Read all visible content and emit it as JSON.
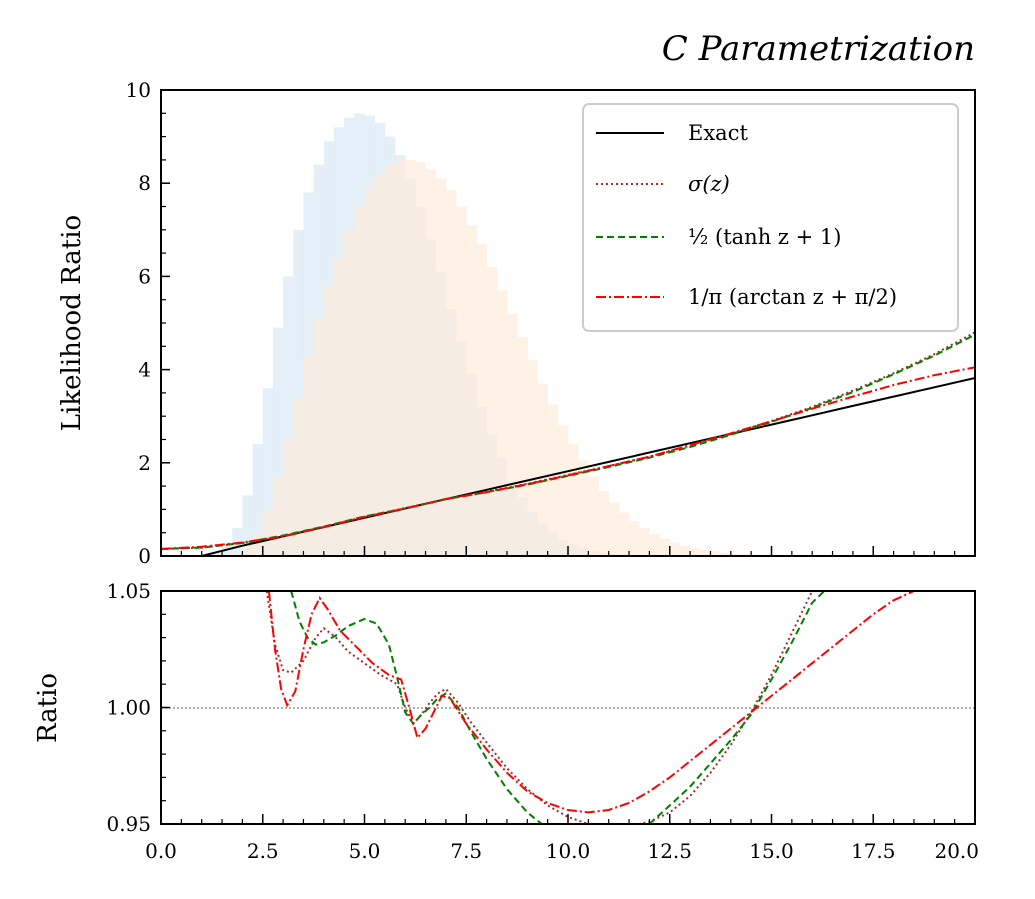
{
  "title": "C Parametrization",
  "chart_data": [
    {
      "type": "line",
      "panel": "main",
      "ylabel": "Likelihood Ratio",
      "xlim": [
        0,
        20
      ],
      "ylim": [
        0,
        10
      ],
      "yticks": [
        "0",
        "2",
        "4",
        "6",
        "8",
        "10"
      ],
      "legend_position": "top-right",
      "histograms": [
        {
          "color": "#dce9f5",
          "bin_edges_x": [
            1.0,
            1.25,
            1.5,
            1.75,
            2.0,
            2.25,
            2.5,
            2.75,
            3.0,
            3.25,
            3.5,
            3.75,
            4.0,
            4.25,
            4.5,
            4.75,
            5.0,
            5.25,
            5.5,
            5.75,
            6.0,
            6.25,
            6.5,
            6.75,
            7.0,
            7.25,
            7.5,
            7.75,
            8.0,
            8.25,
            8.5,
            8.75,
            9.0,
            9.25,
            9.5,
            9.75,
            10.0,
            10.25,
            10.5,
            10.75,
            11.0,
            11.25,
            11.5,
            11.75,
            12.0
          ],
          "heights": [
            0.0,
            0.05,
            0.2,
            0.6,
            1.3,
            2.4,
            3.6,
            4.9,
            6.0,
            7.0,
            7.8,
            8.4,
            8.9,
            9.2,
            9.4,
            9.5,
            9.45,
            9.3,
            9.0,
            8.6,
            8.1,
            7.5,
            6.8,
            6.1,
            5.3,
            4.6,
            3.9,
            3.2,
            2.6,
            2.1,
            1.6,
            1.25,
            0.95,
            0.7,
            0.5,
            0.35,
            0.25,
            0.17,
            0.11,
            0.07,
            0.04,
            0.02,
            0.01,
            0.0
          ]
        },
        {
          "color": "#fdebd8",
          "bin_edges_x": [
            1.5,
            1.75,
            2.0,
            2.25,
            2.5,
            2.75,
            3.0,
            3.25,
            3.5,
            3.75,
            4.0,
            4.25,
            4.5,
            4.75,
            5.0,
            5.25,
            5.5,
            5.75,
            6.0,
            6.25,
            6.5,
            6.75,
            7.0,
            7.25,
            7.5,
            7.75,
            8.0,
            8.25,
            8.5,
            8.75,
            9.0,
            9.25,
            9.5,
            9.75,
            10.0,
            10.25,
            10.5,
            10.75,
            11.0,
            11.25,
            11.5,
            11.75,
            12.0,
            12.25,
            12.5,
            12.75,
            13.0,
            13.25,
            13.5,
            13.75,
            14.0,
            14.25,
            14.5,
            14.75,
            15.0,
            15.25,
            15.5,
            15.75,
            16.0,
            16.25,
            16.5,
            16.75,
            17.0
          ],
          "heights": [
            0.0,
            0.05,
            0.2,
            0.5,
            1.0,
            1.7,
            2.5,
            3.4,
            4.3,
            5.1,
            5.8,
            6.4,
            7.0,
            7.5,
            7.9,
            8.2,
            8.4,
            8.5,
            8.5,
            8.45,
            8.3,
            8.1,
            7.85,
            7.5,
            7.1,
            6.7,
            6.2,
            5.7,
            5.2,
            4.7,
            4.2,
            3.7,
            3.25,
            2.8,
            2.4,
            2.05,
            1.7,
            1.4,
            1.15,
            0.93,
            0.75,
            0.6,
            0.47,
            0.37,
            0.29,
            0.22,
            0.17,
            0.13,
            0.1,
            0.07,
            0.05,
            0.04,
            0.03,
            0.02,
            0.015,
            0.01,
            0.007,
            0.005,
            0.003,
            0.002,
            0.001,
            0.0
          ]
        }
      ],
      "series": [
        {
          "name": "Exact",
          "color": "#000000",
          "style": "solid",
          "x": [
            1.0,
            2.0,
            3.0,
            4.0,
            5.0,
            6.0,
            7.0,
            8.0,
            9.0,
            10.0,
            11.0,
            12.0,
            13.0,
            14.0,
            15.0,
            16.0,
            17.0,
            18.0,
            19.0,
            20.0
          ],
          "y": [
            0.0,
            0.22,
            0.42,
            0.62,
            0.82,
            1.02,
            1.22,
            1.42,
            1.62,
            1.82,
            2.02,
            2.22,
            2.42,
            2.62,
            2.82,
            3.02,
            3.22,
            3.42,
            3.62,
            3.82
          ]
        },
        {
          "name": "σ(z)",
          "color": "#a52a2a",
          "style": "dotted",
          "x": [
            0.0,
            1.0,
            2.0,
            3.0,
            4.0,
            5.0,
            6.0,
            7.0,
            8.0,
            9.0,
            10.0,
            11.0,
            12.0,
            13.0,
            14.0,
            15.0,
            16.0,
            17.0,
            18.0,
            19.0,
            20.0
          ],
          "y": [
            0.15,
            0.18,
            0.28,
            0.43,
            0.63,
            0.84,
            1.03,
            1.22,
            1.38,
            1.55,
            1.74,
            1.93,
            2.13,
            2.37,
            2.62,
            2.9,
            3.2,
            3.55,
            3.92,
            4.33,
            4.8
          ]
        },
        {
          "name": "½ (tanh z + 1)",
          "color": "#008000",
          "style": "dashed",
          "x": [
            0.0,
            1.0,
            2.0,
            3.0,
            4.0,
            5.0,
            6.0,
            7.0,
            8.0,
            9.0,
            10.0,
            11.0,
            12.0,
            13.0,
            14.0,
            15.0,
            16.0,
            17.0,
            18.0,
            19.0,
            20.0
          ],
          "y": [
            0.15,
            0.18,
            0.28,
            0.44,
            0.63,
            0.85,
            1.02,
            1.22,
            1.37,
            1.53,
            1.72,
            1.91,
            2.11,
            2.34,
            2.6,
            2.88,
            3.18,
            3.52,
            3.9,
            4.3,
            4.75
          ]
        },
        {
          "name": "1/π (arctan z + π/2)",
          "color": "#ff0000",
          "style": "dashdot",
          "x": [
            0.0,
            1.0,
            2.0,
            3.0,
            4.0,
            5.0,
            6.0,
            7.0,
            8.0,
            9.0,
            10.0,
            11.0,
            12.0,
            13.0,
            14.0,
            15.0,
            16.0,
            17.0,
            18.0,
            19.0,
            20.0
          ],
          "y": [
            0.15,
            0.2,
            0.29,
            0.42,
            0.62,
            0.84,
            1.02,
            1.22,
            1.37,
            1.54,
            1.73,
            1.93,
            2.13,
            2.38,
            2.63,
            2.89,
            3.16,
            3.42,
            3.67,
            3.88,
            4.05
          ]
        }
      ]
    },
    {
      "type": "line",
      "panel": "ratio",
      "ylabel": "Ratio",
      "xlim": [
        0,
        20
      ],
      "ylim": [
        0.95,
        1.05
      ],
      "xticks": [
        "0.0",
        "2.5",
        "5.0",
        "7.5",
        "10.0",
        "12.5",
        "15.0",
        "17.5",
        "20.0"
      ],
      "yticks": [
        "0.95",
        "1.00",
        "1.05"
      ],
      "reference_line": 1.0,
      "series": [
        {
          "name": "σ(z)",
          "color": "#a52a2a",
          "style": "dotted",
          "x": [
            2.6,
            2.8,
            3.0,
            3.2,
            3.5,
            3.8,
            4.0,
            4.3,
            4.6,
            5.0,
            5.4,
            5.8,
            6.0,
            6.2,
            6.4,
            6.6,
            6.8,
            7.0,
            7.3,
            7.6,
            8.0,
            8.5,
            9.0,
            9.5,
            10.0,
            10.5,
            11.0,
            11.5,
            12.0,
            12.5,
            13.0,
            13.5,
            14.0,
            14.5,
            15.0,
            15.5,
            16.0
          ],
          "y": [
            1.05,
            1.027,
            1.016,
            1.015,
            1.02,
            1.03,
            1.034,
            1.03,
            1.024,
            1.019,
            1.014,
            1.01,
            1.0,
            0.993,
            0.997,
            1.002,
            1.006,
            1.008,
            1.002,
            0.994,
            0.985,
            0.974,
            0.965,
            0.958,
            0.953,
            0.95,
            0.949,
            0.949,
            0.951,
            0.955,
            0.962,
            0.972,
            0.984,
            0.998,
            1.014,
            1.032,
            1.05
          ]
        },
        {
          "name": "½ (tanh z + 1)",
          "color": "#008000",
          "style": "dashed",
          "x": [
            3.2,
            3.4,
            3.6,
            3.8,
            4.0,
            4.3,
            4.6,
            5.0,
            5.3,
            5.6,
            5.8,
            6.0,
            6.2,
            6.4,
            6.6,
            6.8,
            7.0,
            7.3,
            7.6,
            8.0,
            8.5,
            9.0,
            9.5,
            10.0,
            10.5,
            11.0,
            11.5,
            12.0,
            12.5,
            13.0,
            13.5,
            14.0,
            14.5,
            15.0,
            15.5,
            16.0,
            16.3
          ],
          "y": [
            1.05,
            1.037,
            1.03,
            1.027,
            1.028,
            1.031,
            1.035,
            1.038,
            1.036,
            1.027,
            1.013,
            0.998,
            0.993,
            0.997,
            1.0,
            1.004,
            1.006,
            1.0,
            0.99,
            0.978,
            0.965,
            0.955,
            0.948,
            0.944,
            0.942,
            0.942,
            0.945,
            0.95,
            0.958,
            0.966,
            0.976,
            0.986,
            0.997,
            1.012,
            1.028,
            1.045,
            1.05
          ]
        },
        {
          "name": "1/π (arctan z + π/2)",
          "color": "#ff0000",
          "style": "dashdot",
          "x": [
            2.65,
            2.8,
            2.95,
            3.1,
            3.3,
            3.5,
            3.7,
            3.9,
            4.1,
            4.4,
            4.8,
            5.2,
            5.6,
            5.9,
            6.1,
            6.3,
            6.5,
            6.7,
            6.9,
            7.1,
            7.5,
            8.0,
            8.5,
            9.0,
            9.5,
            10.0,
            10.5,
            11.0,
            11.5,
            12.0,
            12.5,
            13.0,
            13.5,
            14.0,
            14.5,
            15.0,
            15.5,
            16.0,
            16.5,
            17.0,
            17.5,
            18.0,
            18.5
          ],
          "y": [
            1.05,
            1.025,
            1.008,
            1.001,
            1.007,
            1.025,
            1.04,
            1.047,
            1.042,
            1.033,
            1.026,
            1.019,
            1.014,
            1.012,
            1.0,
            0.987,
            0.991,
            0.998,
            1.005,
            1.004,
            0.993,
            0.982,
            0.972,
            0.964,
            0.959,
            0.956,
            0.955,
            0.956,
            0.959,
            0.964,
            0.97,
            0.977,
            0.984,
            0.991,
            0.998,
            1.005,
            1.012,
            1.019,
            1.026,
            1.033,
            1.04,
            1.046,
            1.05
          ]
        }
      ]
    }
  ]
}
